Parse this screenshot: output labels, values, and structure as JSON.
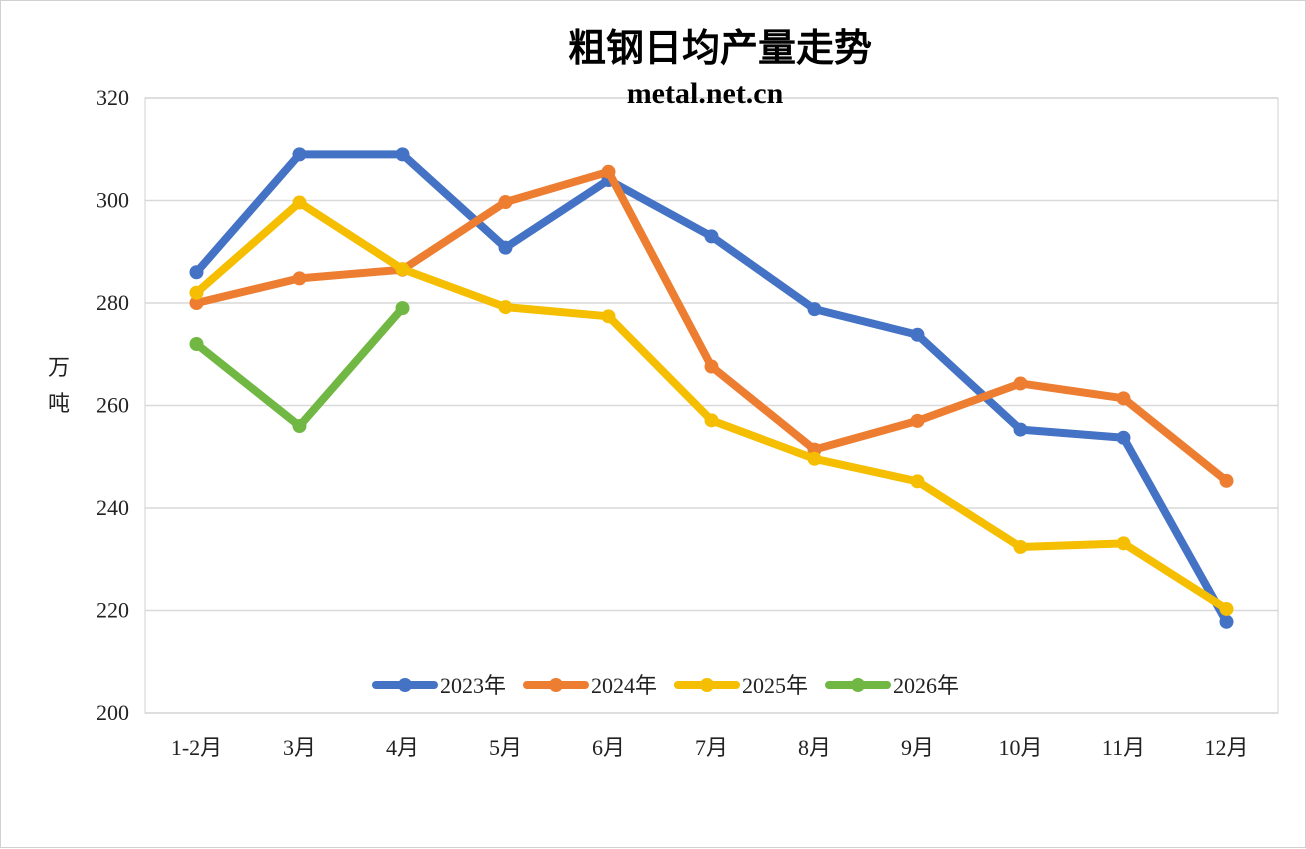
{
  "chart_data": {
    "type": "line",
    "title": "粗钢日均产量走势",
    "subtitle": "metal.net.cn",
    "ylabel": "万\n吨",
    "xlabel": "",
    "ylim": [
      200,
      320
    ],
    "yticks": [
      200,
      220,
      240,
      260,
      280,
      300,
      320
    ],
    "grid": true,
    "legend_position": "bottom-inside",
    "categories": [
      "1-2月",
      "3月",
      "4月",
      "5月",
      "6月",
      "7月",
      "8月",
      "9月",
      "10月",
      "11月",
      "12月"
    ],
    "series": [
      {
        "name": "2023年",
        "color": "#4472C4",
        "values": [
          286,
          309,
          309,
          290.8,
          304,
          293,
          278.8,
          273.8,
          255.3,
          253.7,
          217.8
        ]
      },
      {
        "name": "2024年",
        "color": "#ED7D31",
        "values": [
          280,
          284.8,
          286.5,
          299.7,
          305.6,
          267.6,
          251.4,
          257,
          264.3,
          261.4,
          245.3
        ]
      },
      {
        "name": "2025年",
        "color": "#F5BE00",
        "values": [
          282,
          299.6,
          286.6,
          279.2,
          277.4,
          257.1,
          249.6,
          245.2,
          232.4,
          233.1,
          220.3
        ]
      },
      {
        "name": "2026年",
        "color": "#70B843",
        "values": [
          272,
          256,
          279,
          null,
          null,
          null,
          null,
          null,
          null,
          null,
          null
        ]
      }
    ]
  }
}
